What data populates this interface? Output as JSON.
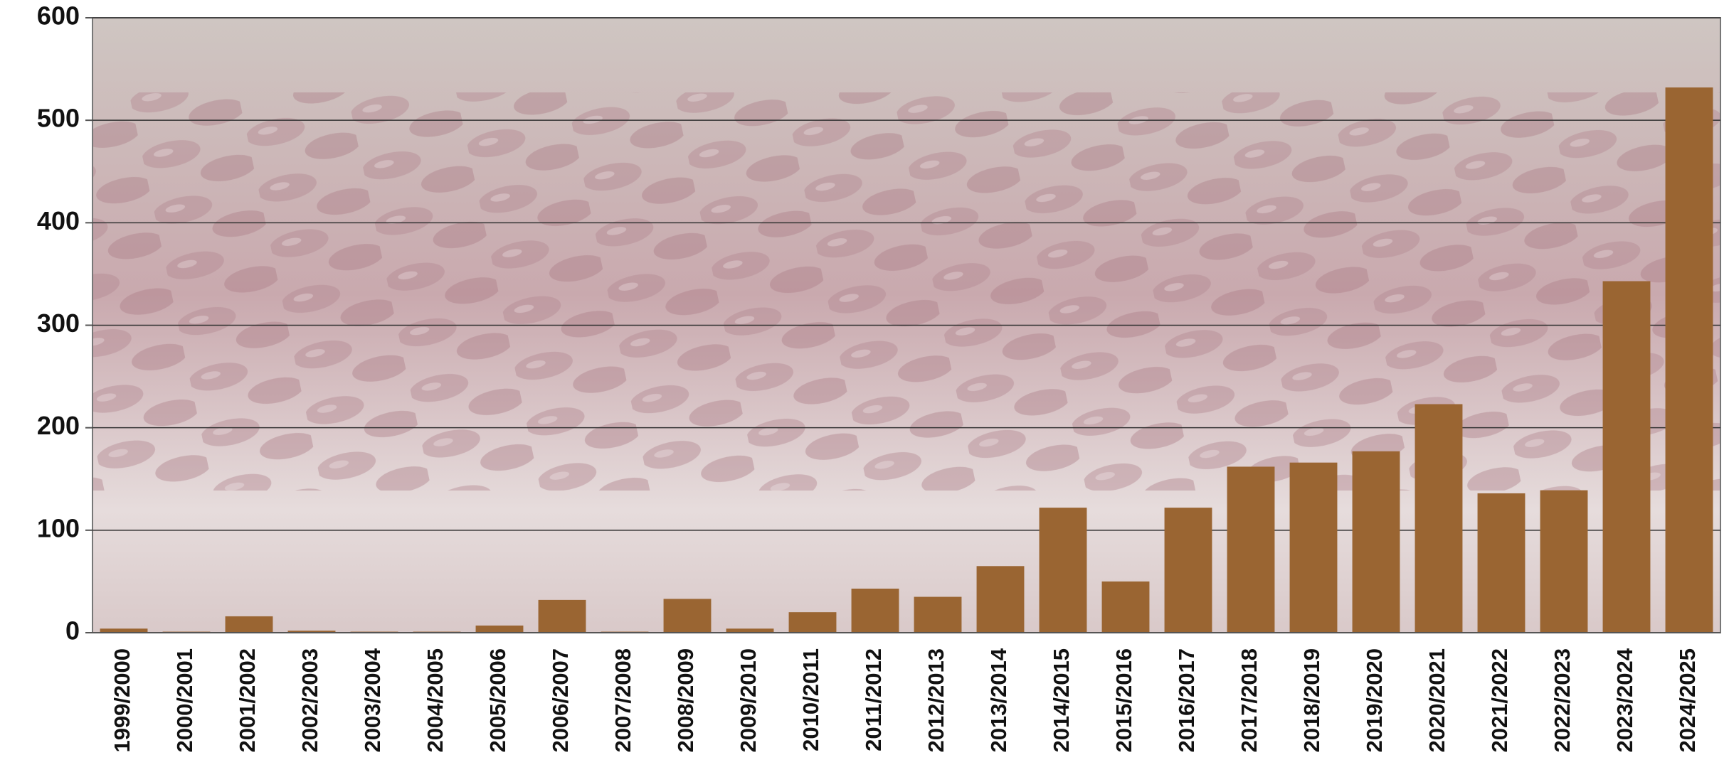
{
  "chart_data": {
    "type": "bar",
    "categories": [
      "1999/2000",
      "2000/2001",
      "2001/2002",
      "2002/2003",
      "2003/2004",
      "2004/2005",
      "2005/2006",
      "2006/2007",
      "2007/2008",
      "2008/2009",
      "2009/2010",
      "2010/2011",
      "2011/2012",
      "2012/2013",
      "2013/2014",
      "2014/2015",
      "2015/2016",
      "2016/2017",
      "2017/2018",
      "2018/2019",
      "2019/2020",
      "2020/2021",
      "2021/2022",
      "2022/2023",
      "2023/2024",
      "2024/2025"
    ],
    "values": [
      4,
      1,
      16,
      2,
      1,
      1,
      7,
      32,
      1,
      33,
      4,
      20,
      43,
      35,
      65,
      122,
      50,
      122,
      162,
      166,
      177,
      223,
      136,
      139,
      343,
      532
    ],
    "color": "#9a6532",
    "ylim": [
      0,
      600
    ],
    "yticks": [
      0,
      100,
      200,
      300,
      400,
      500,
      600
    ],
    "grid": true
  }
}
